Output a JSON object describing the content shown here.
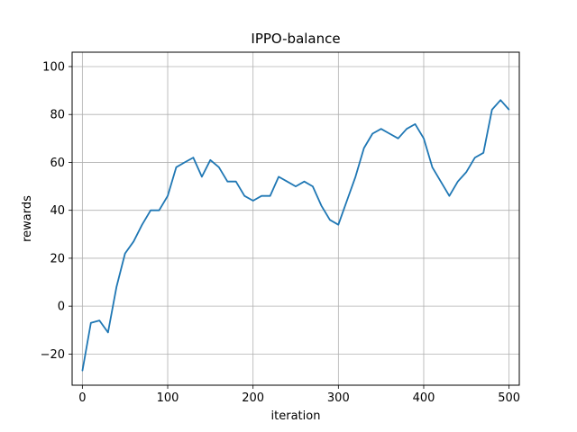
{
  "chart_data": {
    "type": "line",
    "title": "IPPO-balance",
    "xlabel": "iteration",
    "ylabel": "rewards",
    "xlim": [
      -12,
      512
    ],
    "ylim": [
      -33,
      106
    ],
    "x_ticks": [
      0,
      100,
      200,
      300,
      400,
      500
    ],
    "y_ticks": [
      -20,
      0,
      20,
      40,
      60,
      80,
      100
    ],
    "grid": true,
    "series": [
      {
        "color": "#1f77b4",
        "x": [
          0,
          10,
          20,
          30,
          40,
          50,
          60,
          70,
          80,
          90,
          100,
          110,
          120,
          130,
          140,
          150,
          160,
          170,
          180,
          190,
          200,
          210,
          220,
          230,
          240,
          250,
          260,
          270,
          280,
          290,
          300,
          310,
          320,
          330,
          340,
          350,
          360,
          370,
          380,
          390,
          400,
          410,
          420,
          430,
          440,
          450,
          460,
          470,
          480,
          490,
          500
        ],
        "values": [
          -27,
          -7,
          -6,
          -11,
          8,
          22,
          27,
          34,
          40,
          40,
          46,
          58,
          60,
          62,
          54,
          61,
          58,
          52,
          52,
          46,
          44,
          46,
          46,
          54,
          52,
          50,
          52,
          50,
          42,
          36,
          34,
          44,
          54,
          66,
          72,
          74,
          72,
          70,
          74,
          76,
          70,
          58,
          52,
          46,
          52,
          56,
          62,
          64,
          82,
          86,
          82
        ]
      }
    ]
  }
}
